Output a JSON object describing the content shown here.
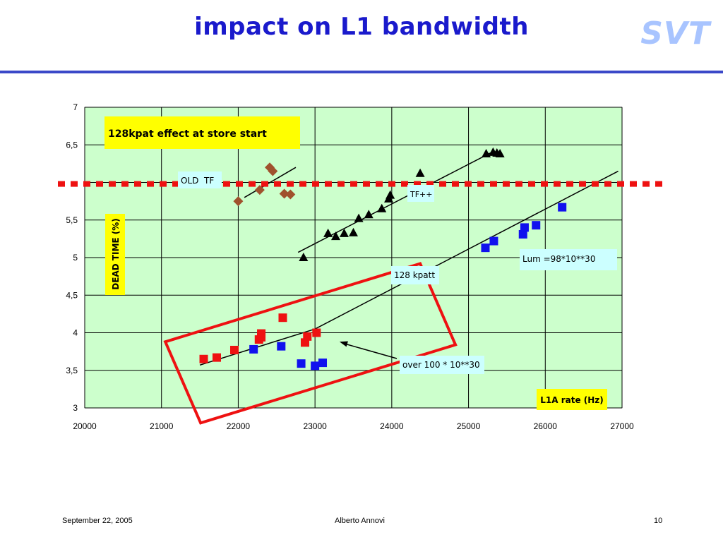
{
  "slide": {
    "title": "impact on L1 bandwidth",
    "logo_text": "SVT",
    "footer_left": "September 22, 2005",
    "footer_center": "Alberto Annovi",
    "footer_right": "10"
  },
  "colors": {
    "title": "#1a1acc",
    "logo": "#a8c4ff",
    "plot_bg": "#ccffcc",
    "red_series": "#ee1111",
    "blue_series": "#1111ee",
    "black_series": "#000000",
    "brown_series": "#a0522d",
    "threshold_line": "#ee1111",
    "highlight_box": "#ee1111",
    "label_box_yellow": "#ffff00",
    "label_box_cyan": "#ccffff"
  },
  "chart_data": {
    "type": "scatter",
    "xlim": [
      20000,
      27000
    ],
    "ylim": [
      3,
      7
    ],
    "grid": true,
    "x_ticks": [
      "20000",
      "21000",
      "22000",
      "23000",
      "24000",
      "25000",
      "26000",
      "27000"
    ],
    "y_ticks": [
      "3",
      "3,5",
      "4",
      "4,5",
      "5",
      "5,5",
      "",
      "6,5",
      "7"
    ],
    "xlabel": "L1A rate (Hz)",
    "ylabel": "DEAD TIME (%)",
    "headline": "128kpat effect at store start",
    "threshold_y": 5.98,
    "series": [
      {
        "marker": "diamond",
        "color": "#a0522d",
        "x": [
          22000,
          22280,
          22410,
          22450,
          22600,
          22680
        ],
        "y": [
          5.75,
          5.9,
          6.2,
          6.15,
          5.85,
          5.84
        ]
      },
      {
        "marker": "triangle",
        "color": "#000000",
        "x": [
          22850,
          23170,
          23270,
          23380,
          23500,
          23570,
          23700,
          23870,
          23960,
          23980,
          24370,
          25230,
          25320,
          25370,
          25410
        ],
        "y": [
          5.0,
          5.32,
          5.28,
          5.32,
          5.33,
          5.52,
          5.57,
          5.65,
          5.78,
          5.83,
          6.12,
          6.38,
          6.4,
          6.39,
          6.38
        ]
      },
      {
        "marker": "square",
        "color": "#ee1111",
        "x": [
          21550,
          21720,
          21950,
          22270,
          22300,
          22300,
          22580,
          22870,
          22900,
          23020
        ],
        "y": [
          3.65,
          3.67,
          3.77,
          3.91,
          3.94,
          3.99,
          4.2,
          3.87,
          3.95,
          4.0
        ]
      },
      {
        "marker": "square",
        "color": "#1111ee",
        "x": [
          22200,
          22560,
          22820,
          23000,
          23100,
          25220,
          25330,
          25710,
          25730,
          25880,
          26220
        ],
        "y": [
          3.78,
          3.82,
          3.59,
          3.56,
          3.6,
          5.13,
          5.22,
          5.31,
          5.4,
          5.43,
          5.67
        ]
      }
    ],
    "trend_lines": [
      {
        "x": [
          22080,
          22750
        ],
        "y": [
          5.8,
          6.2
        ]
      },
      {
        "x": [
          22780,
          25300
        ],
        "y": [
          5.07,
          6.4
        ]
      },
      {
        "x": [
          21500,
          23000,
          26950
        ],
        "y": [
          3.57,
          4.05,
          6.15
        ]
      }
    ],
    "annotations": [
      {
        "text": "OLD  TF",
        "box": "cyan"
      },
      {
        "text": "TF++",
        "box": "cyan"
      },
      {
        "text": "Lum =98*10**30",
        "box": "cyan"
      },
      {
        "text": "128 kpatt",
        "box": "cyan"
      },
      {
        "text": "over 100 * 10**30",
        "box": "cyan"
      }
    ],
    "arrow_target": {
      "x": 23320,
      "y": 3.88
    },
    "highlight_box_corners": [
      {
        "x": 21050,
        "y": 3.88
      },
      {
        "x": 24370,
        "y": 4.92
      },
      {
        "x": 24830,
        "y": 3.84
      },
      {
        "x": 21510,
        "y": 2.8
      }
    ]
  }
}
